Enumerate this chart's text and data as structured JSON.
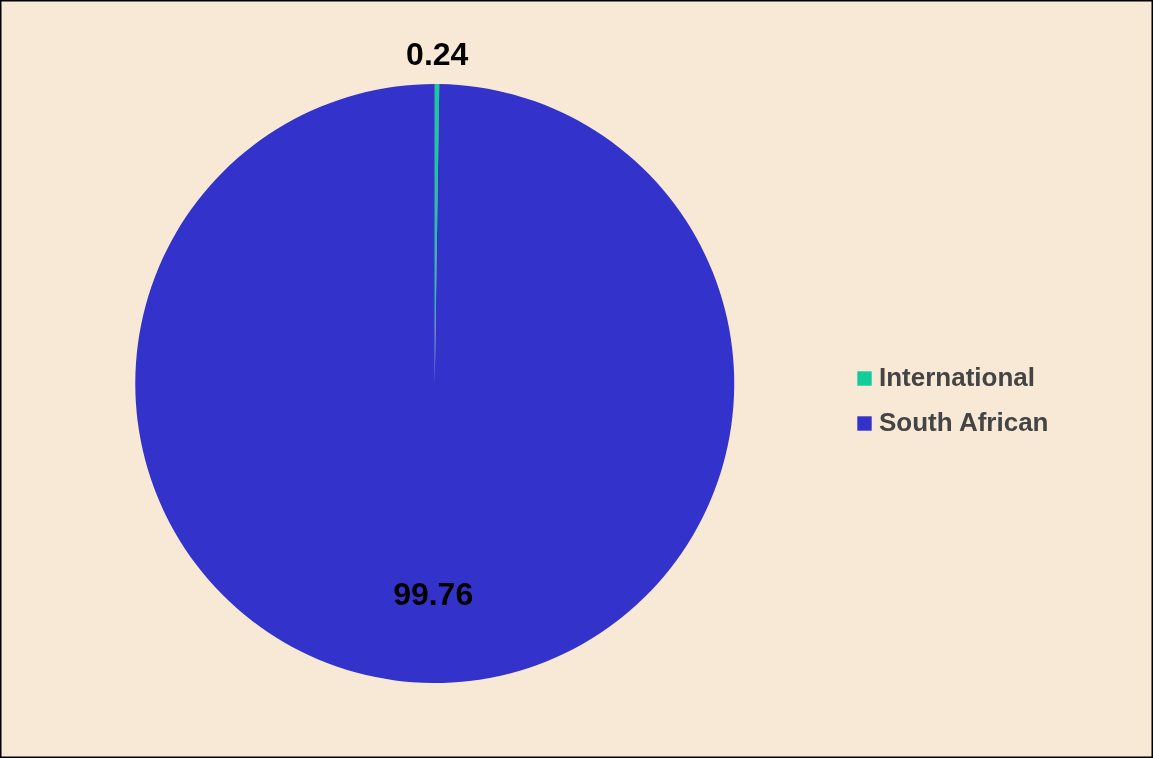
{
  "chart_data": {
    "type": "pie",
    "categories": [
      "International",
      "South African"
    ],
    "values": [
      0.24,
      99.76
    ],
    "colors": [
      "#12cc99",
      "#3333cc"
    ],
    "data_labels": true,
    "legend": "right"
  }
}
